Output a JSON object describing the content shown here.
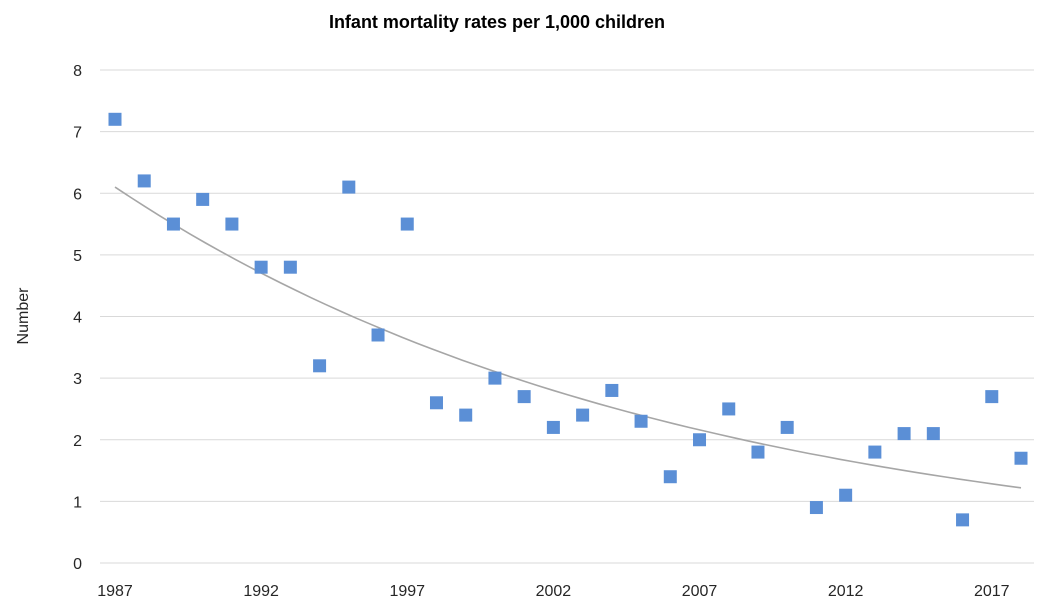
{
  "chart_data": {
    "type": "scatter",
    "title": "Infant mortality rates per 1,000 children",
    "xlabel": "",
    "ylabel": "Number",
    "xlim": [
      1987,
      2018
    ],
    "ylim": [
      0,
      8
    ],
    "x_ticks": [
      1987,
      1992,
      1997,
      2002,
      2007,
      2012,
      2017
    ],
    "y_ticks": [
      0,
      1,
      2,
      3,
      4,
      5,
      6,
      7,
      8
    ],
    "grid": true,
    "legend": "none",
    "marker_color": "#5b8fd6",
    "trendline_color": "#a6a6a6",
    "trendline_type": "exponential",
    "x": [
      1987,
      1988,
      1989,
      1990,
      1991,
      1992,
      1993,
      1994,
      1995,
      1996,
      1997,
      1998,
      1999,
      2000,
      2001,
      2002,
      2003,
      2004,
      2005,
      2006,
      2007,
      2008,
      2009,
      2010,
      2011,
      2012,
      2013,
      2014,
      2015,
      2016,
      2017,
      2018
    ],
    "y": [
      7.2,
      6.2,
      5.5,
      5.9,
      5.5,
      4.8,
      4.8,
      3.2,
      6.1,
      3.7,
      5.5,
      2.6,
      2.4,
      3.0,
      2.7,
      2.2,
      2.4,
      2.8,
      2.3,
      1.4,
      2.0,
      2.5,
      1.8,
      2.2,
      0.9,
      1.1,
      1.8,
      2.1,
      2.1,
      0.7,
      2.7,
      1.7
    ],
    "trendline": {
      "x_start": 1987,
      "y_start": 6.1,
      "x_end": 2018,
      "y_end": 1.22
    }
  }
}
